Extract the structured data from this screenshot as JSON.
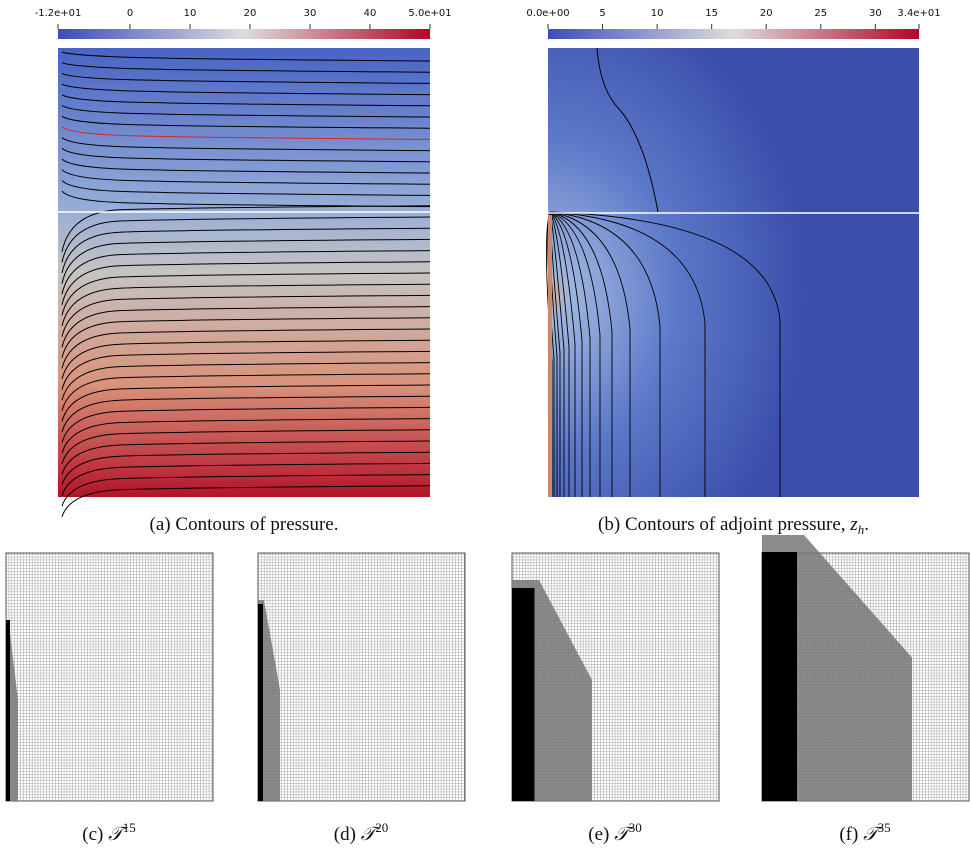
{
  "panels": [
    {
      "colorbar": {
        "lim": [
          -12,
          50
        ],
        "ticks": [
          {
            "value": -12,
            "label": "-1.2e+01"
          },
          0,
          10,
          20,
          30,
          40,
          {
            "value": 50,
            "label": "5.0e+01"
          }
        ]
      },
      "caption": {
        "label": "(a)",
        "text": "Contours of pressure."
      }
    },
    {
      "colorbar": {
        "lim": [
          0,
          34
        ],
        "ticks": [
          {
            "value": 0,
            "label": "0.0e+00"
          },
          5,
          10,
          15,
          20,
          25,
          30,
          {
            "value": 34,
            "label": "3.4e+01"
          }
        ]
      },
      "caption": {
        "label": "(b)",
        "text": "Contours of adjoint pressure,",
        "var": "z",
        "sub": "h",
        "end": "."
      }
    }
  ],
  "meshes": [
    {
      "label": "(c)",
      "symbol": "𝒯",
      "sup": "15"
    },
    {
      "label": "(d)",
      "symbol": "𝒯",
      "sup": "20"
    },
    {
      "label": "(e)",
      "symbol": "𝒯",
      "sup": "30"
    },
    {
      "label": "(f)",
      "symbol": "𝒯",
      "sup": "35"
    }
  ]
}
